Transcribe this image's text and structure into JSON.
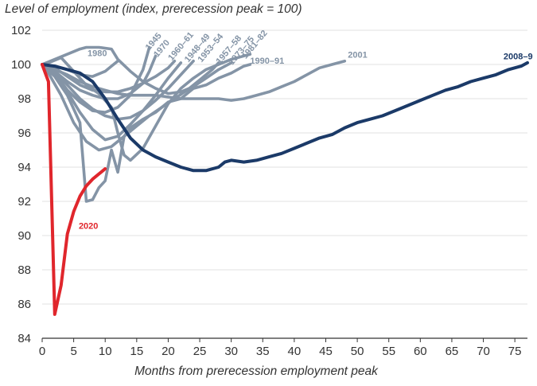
{
  "chart_data": {
    "type": "line",
    "title": "Level of employment (index, prerecession peak = 100)",
    "xlabel": "Months from prerecession employment peak",
    "ylabel": "",
    "xlim": [
      0,
      77
    ],
    "ylim": [
      84,
      102
    ],
    "xticks": [
      0,
      5,
      10,
      15,
      20,
      25,
      30,
      35,
      40,
      45,
      50,
      55,
      60,
      65,
      70,
      75
    ],
    "yticks": [
      84,
      86,
      88,
      90,
      92,
      94,
      96,
      98,
      100,
      102
    ],
    "grid": "horizontal",
    "legend": "none (series labeled inline)",
    "colors": {
      "historical": "#8494a6",
      "recession_2008_9": "#1b3a68",
      "recession_2020": "#e0262c",
      "grid": "#e2e2e2",
      "axis": "#333333"
    },
    "series": [
      {
        "name": "1945",
        "color": "#8494a6",
        "x": [
          0,
          2,
          4,
          6,
          8,
          10,
          12,
          14,
          16,
          17
        ],
        "y": [
          100,
          99.5,
          98.5,
          97.8,
          97.3,
          97.2,
          97.5,
          98.2,
          99.7,
          101.0
        ]
      },
      {
        "name": "1970",
        "color": "#8494a6",
        "x": [
          0,
          2,
          4,
          6,
          8,
          10,
          12,
          14,
          16,
          17,
          18
        ],
        "y": [
          100,
          99.6,
          99.0,
          98.5,
          98.2,
          98.0,
          98.0,
          98.3,
          98.9,
          99.6,
          100.5
        ]
      },
      {
        "name": "1980",
        "color": "#8494a6",
        "x": [
          0,
          2,
          4,
          6,
          8,
          10,
          11,
          12
        ],
        "y": [
          100,
          99.9,
          99.7,
          99.4,
          99.3,
          99.6,
          99.9,
          100.2
        ]
      },
      {
        "name": "1960–61",
        "color": "#8494a6",
        "x": [
          0,
          2,
          4,
          6,
          8,
          10,
          12,
          14,
          16,
          18,
          20,
          21
        ],
        "y": [
          100,
          99.8,
          99.3,
          98.8,
          98.5,
          98.4,
          98.4,
          98.6,
          98.9,
          99.3,
          99.8,
          100.2
        ]
      },
      {
        "name": "1948–49",
        "color": "#8494a6",
        "x": [
          0,
          2,
          4,
          6,
          8,
          10,
          12,
          14,
          16,
          18,
          20,
          22
        ],
        "y": [
          100,
          99.4,
          98.4,
          97.2,
          96.2,
          95.6,
          95.8,
          96.5,
          97.3,
          98.2,
          99.2,
          100.1
        ]
      },
      {
        "name": "1953–54",
        "color": "#8494a6",
        "x": [
          0,
          2,
          4,
          6,
          8,
          10,
          12,
          14,
          16,
          18,
          20,
          22,
          23,
          24
        ],
        "y": [
          100,
          99.6,
          98.8,
          98.0,
          97.4,
          97.0,
          96.8,
          96.9,
          97.3,
          97.9,
          98.6,
          99.4,
          99.8,
          100.2
        ]
      },
      {
        "name": "1957–58",
        "color": "#8494a6",
        "x": [
          0,
          1,
          3,
          5,
          7,
          9,
          11,
          13,
          15,
          17,
          19,
          21,
          23,
          25,
          27,
          28
        ],
        "y": [
          100,
          99.5,
          98.2,
          96.6,
          95.5,
          95.0,
          95.2,
          95.8,
          96.4,
          97.0,
          97.5,
          98.0,
          98.5,
          99.1,
          99.7,
          100.1
        ]
      },
      {
        "name": "1973–75",
        "color": "#8494a6",
        "x": [
          0,
          2,
          4,
          6,
          7,
          9,
          11,
          12,
          14,
          16,
          18,
          20,
          22,
          24,
          26,
          28,
          30
        ],
        "y": [
          100,
          100.3,
          100.6,
          100.9,
          101.0,
          101.0,
          100.9,
          100.3,
          99.6,
          99.0,
          98.6,
          98.3,
          98.4,
          98.7,
          99.2,
          99.7,
          100.1
        ]
      },
      {
        "name": "1981–82",
        "color": "#8494a6",
        "x": [
          0,
          1,
          3,
          5,
          7,
          9,
          11,
          12,
          13,
          14,
          16,
          18,
          20,
          22,
          24,
          26,
          28,
          30,
          32,
          33
        ],
        "y": [
          100,
          100.1,
          100.4,
          99.6,
          98.8,
          98.3,
          97.5,
          96.0,
          94.7,
          94.4,
          95.1,
          96.4,
          97.7,
          98.6,
          99.2,
          99.7,
          100.0,
          100.3,
          100.5,
          100.6
        ]
      },
      {
        "name": "1990–91",
        "color": "#8494a6",
        "x": [
          0,
          2,
          4,
          6,
          7,
          8,
          9,
          10,
          11,
          12,
          13,
          14,
          16,
          18,
          20,
          22,
          24,
          26,
          28,
          30,
          32,
          33
        ],
        "y": [
          100,
          99.3,
          98.2,
          96.6,
          92.0,
          92.1,
          92.8,
          93.2,
          95.0,
          93.7,
          95.8,
          96.3,
          96.8,
          97.2,
          97.8,
          98.0,
          98.6,
          98.8,
          99.2,
          99.5,
          99.9,
          100.0
        ]
      },
      {
        "name": "2001",
        "color": "#8494a6",
        "x": [
          0,
          2,
          4,
          6,
          8,
          10,
          12,
          14,
          16,
          18,
          20,
          22,
          24,
          26,
          28,
          30,
          32,
          34,
          36,
          38,
          40,
          42,
          44,
          46,
          48
        ],
        "y": [
          100,
          99.7,
          99.4,
          99.0,
          98.7,
          98.5,
          98.3,
          98.2,
          98.2,
          98.2,
          98.1,
          98.0,
          98.0,
          98.0,
          98.0,
          97.9,
          98.0,
          98.2,
          98.4,
          98.7,
          99.0,
          99.4,
          99.8,
          100.0,
          100.2
        ]
      },
      {
        "name": "2008–9",
        "color": "#1b3a68",
        "x": [
          0,
          2,
          4,
          6,
          8,
          10,
          12,
          14,
          16,
          18,
          20,
          22,
          24,
          26,
          28,
          29,
          30,
          32,
          34,
          36,
          38,
          40,
          42,
          44,
          46,
          48,
          50,
          52,
          54,
          56,
          58,
          60,
          62,
          64,
          66,
          68,
          70,
          72,
          74,
          76,
          77
        ],
        "y": [
          100,
          99.9,
          99.7,
          99.5,
          99.0,
          98.0,
          96.8,
          95.7,
          95.0,
          94.6,
          94.3,
          94.0,
          93.8,
          93.8,
          94.0,
          94.3,
          94.4,
          94.3,
          94.4,
          94.6,
          94.8,
          95.1,
          95.4,
          95.7,
          95.9,
          96.3,
          96.6,
          96.8,
          97.0,
          97.3,
          97.6,
          97.9,
          98.2,
          98.5,
          98.7,
          99.0,
          99.2,
          99.4,
          99.7,
          99.9,
          100.1
        ]
      },
      {
        "name": "2020",
        "color": "#e0262c",
        "x": [
          0,
          1,
          2,
          3,
          4,
          5,
          6,
          7,
          8,
          9,
          10
        ],
        "y": [
          100,
          99.0,
          85.4,
          87.1,
          90.1,
          91.4,
          92.3,
          92.9,
          93.3,
          93.6,
          93.9
        ]
      }
    ],
    "annotations": [
      {
        "text": "1945",
        "x": 17,
        "y": 100.8,
        "rotate": -50,
        "color": "#8494a6"
      },
      {
        "text": "1970",
        "x": 18.3,
        "y": 100.4,
        "rotate": -50,
        "color": "#8494a6"
      },
      {
        "text": "1980",
        "x": 7.2,
        "y": 100.5,
        "rotate": 0,
        "color": "#8494a6"
      },
      {
        "text": "1960–61",
        "x": 20.6,
        "y": 100.2,
        "rotate": -50,
        "color": "#8494a6"
      },
      {
        "text": "1948–49",
        "x": 23.2,
        "y": 100.1,
        "rotate": -50,
        "color": "#8494a6"
      },
      {
        "text": "1953–54",
        "x": 25.3,
        "y": 100.1,
        "rotate": -50,
        "color": "#8494a6"
      },
      {
        "text": "1957–58",
        "x": 28.2,
        "y": 100.0,
        "rotate": -50,
        "color": "#8494a6"
      },
      {
        "text": "1973–75",
        "x": 30.2,
        "y": 99.95,
        "rotate": -50,
        "color": "#8494a6"
      },
      {
        "text": "1981–82",
        "x": 32.3,
        "y": 100.3,
        "rotate": -50,
        "color": "#8494a6"
      },
      {
        "text": "1990–91",
        "x": 33,
        "y": 100.05,
        "rotate": 0,
        "color": "#8494a6"
      },
      {
        "text": "2001",
        "x": 48.5,
        "y": 100.4,
        "rotate": 0,
        "color": "#8494a6"
      },
      {
        "text": "2008–9",
        "x": 73.2,
        "y": 100.3,
        "rotate": 0,
        "color": "#1b3a68"
      },
      {
        "text": "2020",
        "x": 5.8,
        "y": 90.4,
        "rotate": 0,
        "color": "#e0262c"
      }
    ]
  }
}
